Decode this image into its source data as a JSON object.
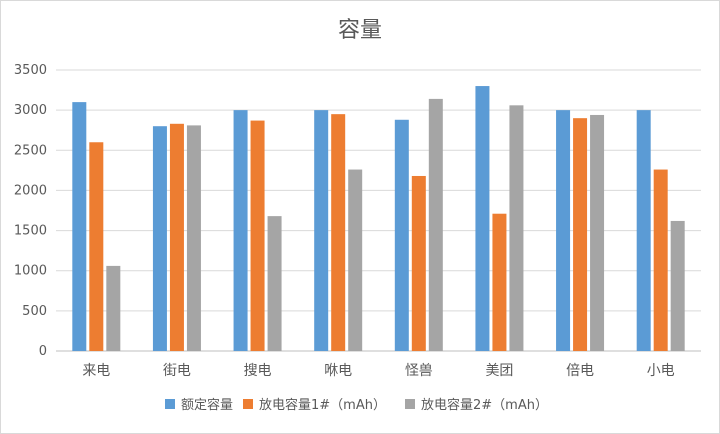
{
  "chart_data": {
    "type": "bar",
    "title": "容量",
    "xlabel": "",
    "ylabel": "",
    "categories": [
      "来电",
      "街电",
      "搜电",
      "咻电",
      "怪兽",
      "美团",
      "倍电",
      "小电"
    ],
    "series": [
      {
        "name": "额定容量",
        "color": "#5B9BD5",
        "values": [
          3100,
          2800,
          3000,
          3000,
          2880,
          3300,
          3000,
          3000
        ]
      },
      {
        "name": "放电容量1#（mAh）",
        "color": "#ED7D31",
        "values": [
          2600,
          2830,
          2870,
          2950,
          2180,
          1710,
          2900,
          2260
        ]
      },
      {
        "name": "放电容量2#（mAh）",
        "color": "#A5A5A5",
        "values": [
          1060,
          2810,
          1680,
          2260,
          3140,
          3060,
          2940,
          1620
        ]
      }
    ],
    "ylim": [
      0,
      3500
    ],
    "yticks": [
      0,
      500,
      1000,
      1500,
      2000,
      2500,
      3000,
      3500
    ],
    "grid": true,
    "legend_position": "bottom"
  }
}
